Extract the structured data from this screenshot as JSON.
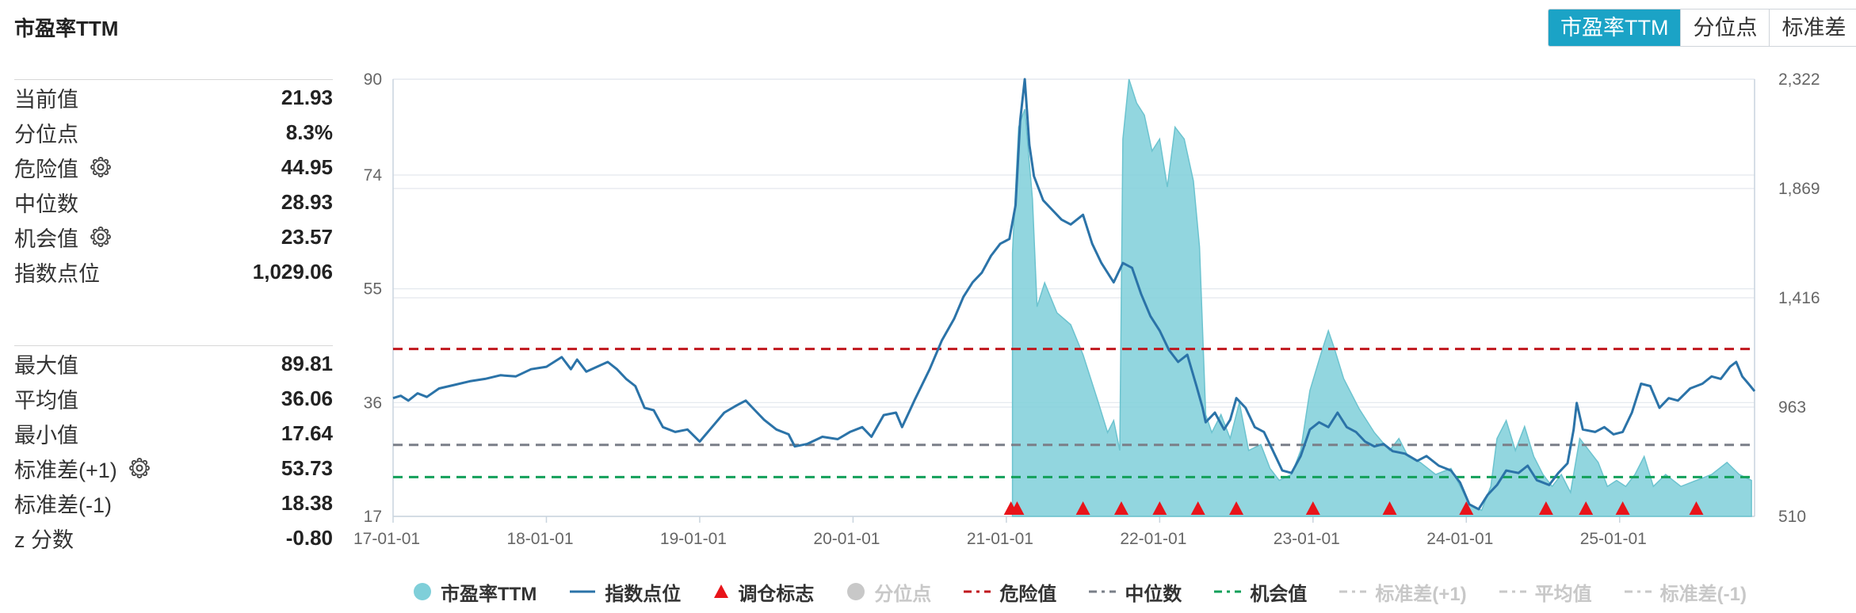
{
  "header": {
    "title": "市盈率TTM",
    "tabs": [
      "市盈率TTM",
      "分位点",
      "标准差"
    ],
    "active_tab": 0
  },
  "stats_top": [
    {
      "label": "当前值",
      "value": "21.93",
      "gear": false
    },
    {
      "label": "分位点",
      "value": "8.3%",
      "gear": false
    },
    {
      "label": "危险值",
      "value": "44.95",
      "gear": true
    },
    {
      "label": "中位数",
      "value": "28.93",
      "gear": false
    },
    {
      "label": "机会值",
      "value": "23.57",
      "gear": true
    },
    {
      "label": "指数点位",
      "value": "1,029.06",
      "gear": false
    }
  ],
  "stats_bottom": [
    {
      "label": "最大值",
      "value": "89.81",
      "gear": false
    },
    {
      "label": "平均值",
      "value": "36.06",
      "gear": false
    },
    {
      "label": "最小值",
      "value": "17.64",
      "gear": false
    },
    {
      "label": "标准差(+1)",
      "value": "53.73",
      "gear": true
    },
    {
      "label": "标准差(-1)",
      "value": "18.38",
      "gear": false
    },
    {
      "label": "z 分数",
      "value": "-0.80",
      "gear": false
    }
  ],
  "legend": [
    {
      "label": "市盈率TTM",
      "kind": "dot",
      "color": "#7fcfd9",
      "active": true
    },
    {
      "label": "指数点位",
      "kind": "line",
      "color": "#2b73a8",
      "active": true
    },
    {
      "label": "调仓标志",
      "kind": "triangle",
      "color": "#e8141a",
      "active": true
    },
    {
      "label": "分位点",
      "kind": "dot",
      "color": "#c8c8c8",
      "active": false
    },
    {
      "label": "危险值",
      "kind": "dash",
      "color": "#c0161c",
      "active": true
    },
    {
      "label": "中位数",
      "kind": "dash",
      "color": "#7a7f88",
      "active": true
    },
    {
      "label": "机会值",
      "kind": "dash",
      "color": "#13a05a",
      "active": true
    },
    {
      "label": "标准差(+1)",
      "kind": "dash",
      "color": "#c8c8c8",
      "active": false
    },
    {
      "label": "平均值",
      "kind": "dash",
      "color": "#c8c8c8",
      "active": false
    },
    {
      "label": "标准差(-1)",
      "kind": "dash",
      "color": "#c8c8c8",
      "active": false
    }
  ],
  "chart_data": {
    "type": "area+line",
    "title": "市盈率TTM",
    "x_ticks": [
      "17-01-01",
      "18-01-01",
      "19-01-01",
      "20-01-01",
      "21-01-01",
      "22-01-01",
      "23-01-01",
      "24-01-01",
      "25-01-01"
    ],
    "x_tick_years": [
      2017,
      2018,
      2019,
      2020,
      2021,
      2022,
      2023,
      2024,
      2025
    ],
    "x_range": [
      2017.0,
      2025.88
    ],
    "y_left": {
      "range": [
        17,
        90
      ],
      "ticks": [
        17,
        36,
        55,
        74,
        90
      ]
    },
    "y_right": {
      "range": [
        510,
        2322
      ],
      "ticks_text": [
        "510",
        "963",
        "1,416",
        "1,869",
        "2,322"
      ],
      "ticks": [
        510,
        963,
        1416,
        1869,
        2322
      ]
    },
    "reference_lines": {
      "danger": 44.95,
      "median": 28.93,
      "opportunity": 23.57
    },
    "series": [
      {
        "name": "市盈率TTM",
        "type": "area",
        "axis": "left",
        "color": "#7fcfd9",
        "points": [
          [
            2021.04,
            61
          ],
          [
            2021.08,
            82
          ],
          [
            2021.12,
            85
          ],
          [
            2021.17,
            70
          ],
          [
            2021.2,
            52
          ],
          [
            2021.25,
            56
          ],
          [
            2021.33,
            51
          ],
          [
            2021.42,
            49
          ],
          [
            2021.5,
            44
          ],
          [
            2021.6,
            36
          ],
          [
            2021.66,
            31
          ],
          [
            2021.7,
            33
          ],
          [
            2021.74,
            28
          ],
          [
            2021.76,
            80
          ],
          [
            2021.8,
            90
          ],
          [
            2021.85,
            86
          ],
          [
            2021.9,
            84
          ],
          [
            2021.95,
            78
          ],
          [
            2022.0,
            80
          ],
          [
            2022.05,
            72
          ],
          [
            2022.1,
            82
          ],
          [
            2022.16,
            80
          ],
          [
            2022.22,
            73
          ],
          [
            2022.26,
            62
          ],
          [
            2022.3,
            34
          ],
          [
            2022.34,
            31
          ],
          [
            2022.4,
            34
          ],
          [
            2022.46,
            30
          ],
          [
            2022.52,
            36
          ],
          [
            2022.58,
            28
          ],
          [
            2022.66,
            29
          ],
          [
            2022.72,
            25
          ],
          [
            2022.78,
            23
          ],
          [
            2022.86,
            24
          ],
          [
            2022.92,
            28
          ],
          [
            2022.98,
            38
          ],
          [
            2023.05,
            44
          ],
          [
            2023.1,
            48
          ],
          [
            2023.14,
            45
          ],
          [
            2023.2,
            40
          ],
          [
            2023.3,
            35
          ],
          [
            2023.4,
            31
          ],
          [
            2023.5,
            28
          ],
          [
            2023.56,
            30
          ],
          [
            2023.62,
            27
          ],
          [
            2023.7,
            26
          ],
          [
            2023.8,
            24
          ],
          [
            2023.9,
            25
          ],
          [
            2023.96,
            22
          ],
          [
            2024.02,
            19
          ],
          [
            2024.1,
            18
          ],
          [
            2024.16,
            22
          ],
          [
            2024.2,
            30
          ],
          [
            2024.26,
            33
          ],
          [
            2024.32,
            28
          ],
          [
            2024.38,
            32
          ],
          [
            2024.44,
            27
          ],
          [
            2024.5,
            24
          ],
          [
            2024.56,
            22
          ],
          [
            2024.62,
            24
          ],
          [
            2024.68,
            21
          ],
          [
            2024.74,
            30
          ],
          [
            2024.8,
            28
          ],
          [
            2024.86,
            26
          ],
          [
            2024.92,
            22
          ],
          [
            2024.98,
            23
          ],
          [
            2025.04,
            22
          ],
          [
            2025.1,
            24
          ],
          [
            2025.16,
            27
          ],
          [
            2025.22,
            22
          ],
          [
            2025.3,
            24
          ],
          [
            2025.4,
            22
          ],
          [
            2025.5,
            23
          ],
          [
            2025.6,
            24
          ],
          [
            2025.7,
            26
          ],
          [
            2025.78,
            24
          ],
          [
            2025.86,
            23
          ]
        ]
      },
      {
        "name": "指数点位",
        "type": "line",
        "axis": "right",
        "color": "#2b73a8",
        "points": [
          [
            2017.0,
            1000
          ],
          [
            2017.05,
            1010
          ],
          [
            2017.1,
            990
          ],
          [
            2017.16,
            1020
          ],
          [
            2017.22,
            1005
          ],
          [
            2017.3,
            1040
          ],
          [
            2017.4,
            1055
          ],
          [
            2017.5,
            1070
          ],
          [
            2017.6,
            1080
          ],
          [
            2017.7,
            1095
          ],
          [
            2017.8,
            1090
          ],
          [
            2017.9,
            1120
          ],
          [
            2018.0,
            1130
          ],
          [
            2018.1,
            1170
          ],
          [
            2018.16,
            1120
          ],
          [
            2018.2,
            1160
          ],
          [
            2018.26,
            1110
          ],
          [
            2018.33,
            1130
          ],
          [
            2018.4,
            1150
          ],
          [
            2018.46,
            1120
          ],
          [
            2018.52,
            1080
          ],
          [
            2018.58,
            1050
          ],
          [
            2018.64,
            960
          ],
          [
            2018.7,
            950
          ],
          [
            2018.76,
            880
          ],
          [
            2018.84,
            860
          ],
          [
            2018.92,
            870
          ],
          [
            2019.0,
            820
          ],
          [
            2019.08,
            880
          ],
          [
            2019.16,
            940
          ],
          [
            2019.24,
            970
          ],
          [
            2019.3,
            990
          ],
          [
            2019.36,
            950
          ],
          [
            2019.42,
            910
          ],
          [
            2019.5,
            870
          ],
          [
            2019.58,
            850
          ],
          [
            2019.62,
            800
          ],
          [
            2019.7,
            810
          ],
          [
            2019.8,
            840
          ],
          [
            2019.9,
            830
          ],
          [
            2019.98,
            860
          ],
          [
            2020.06,
            880
          ],
          [
            2020.12,
            840
          ],
          [
            2020.2,
            930
          ],
          [
            2020.28,
            940
          ],
          [
            2020.32,
            880
          ],
          [
            2020.4,
            990
          ],
          [
            2020.5,
            1120
          ],
          [
            2020.58,
            1240
          ],
          [
            2020.66,
            1330
          ],
          [
            2020.72,
            1420
          ],
          [
            2020.78,
            1480
          ],
          [
            2020.84,
            1520
          ],
          [
            2020.9,
            1590
          ],
          [
            2020.96,
            1640
          ],
          [
            2021.02,
            1660
          ],
          [
            2021.06,
            1800
          ],
          [
            2021.09,
            2150
          ],
          [
            2021.12,
            2322
          ],
          [
            2021.15,
            2050
          ],
          [
            2021.18,
            1920
          ],
          [
            2021.24,
            1820
          ],
          [
            2021.3,
            1780
          ],
          [
            2021.36,
            1740
          ],
          [
            2021.42,
            1720
          ],
          [
            2021.5,
            1760
          ],
          [
            2021.56,
            1640
          ],
          [
            2021.62,
            1560
          ],
          [
            2021.7,
            1480
          ],
          [
            2021.76,
            1560
          ],
          [
            2021.82,
            1540
          ],
          [
            2021.88,
            1430
          ],
          [
            2021.94,
            1340
          ],
          [
            2022.0,
            1280
          ],
          [
            2022.06,
            1200
          ],
          [
            2022.12,
            1150
          ],
          [
            2022.18,
            1180
          ],
          [
            2022.24,
            1050
          ],
          [
            2022.28,
            960
          ],
          [
            2022.3,
            900
          ],
          [
            2022.36,
            940
          ],
          [
            2022.42,
            870
          ],
          [
            2022.46,
            910
          ],
          [
            2022.5,
            1000
          ],
          [
            2022.56,
            960
          ],
          [
            2022.62,
            880
          ],
          [
            2022.68,
            860
          ],
          [
            2022.74,
            780
          ],
          [
            2022.8,
            700
          ],
          [
            2022.86,
            690
          ],
          [
            2022.92,
            760
          ],
          [
            2022.98,
            870
          ],
          [
            2023.04,
            900
          ],
          [
            2023.1,
            880
          ],
          [
            2023.16,
            940
          ],
          [
            2023.22,
            880
          ],
          [
            2023.28,
            860
          ],
          [
            2023.34,
            820
          ],
          [
            2023.4,
            800
          ],
          [
            2023.46,
            810
          ],
          [
            2023.52,
            780
          ],
          [
            2023.6,
            770
          ],
          [
            2023.68,
            740
          ],
          [
            2023.74,
            760
          ],
          [
            2023.82,
            720
          ],
          [
            2023.9,
            700
          ],
          [
            2023.96,
            650
          ],
          [
            2024.02,
            560
          ],
          [
            2024.08,
            540
          ],
          [
            2024.14,
            600
          ],
          [
            2024.2,
            640
          ],
          [
            2024.26,
            700
          ],
          [
            2024.34,
            690
          ],
          [
            2024.4,
            720
          ],
          [
            2024.46,
            660
          ],
          [
            2024.54,
            640
          ],
          [
            2024.6,
            690
          ],
          [
            2024.66,
            730
          ],
          [
            2024.7,
            870
          ],
          [
            2024.72,
            980
          ],
          [
            2024.76,
            870
          ],
          [
            2024.84,
            860
          ],
          [
            2024.9,
            880
          ],
          [
            2024.96,
            850
          ],
          [
            2025.02,
            860
          ],
          [
            2025.08,
            940
          ],
          [
            2025.14,
            1060
          ],
          [
            2025.2,
            1050
          ],
          [
            2025.26,
            960
          ],
          [
            2025.32,
            1000
          ],
          [
            2025.38,
            990
          ],
          [
            2025.46,
            1040
          ],
          [
            2025.54,
            1060
          ],
          [
            2025.6,
            1090
          ],
          [
            2025.66,
            1080
          ],
          [
            2025.72,
            1130
          ],
          [
            2025.76,
            1150
          ],
          [
            2025.8,
            1090
          ],
          [
            2025.84,
            1060
          ],
          [
            2025.88,
            1029
          ]
        ]
      }
    ],
    "rebalance_markers": [
      2021.03,
      2021.07,
      2021.5,
      2021.75,
      2022.0,
      2022.25,
      2022.5,
      2023.0,
      2023.5,
      2024.0,
      2024.52,
      2024.78,
      2025.02,
      2025.5
    ]
  }
}
